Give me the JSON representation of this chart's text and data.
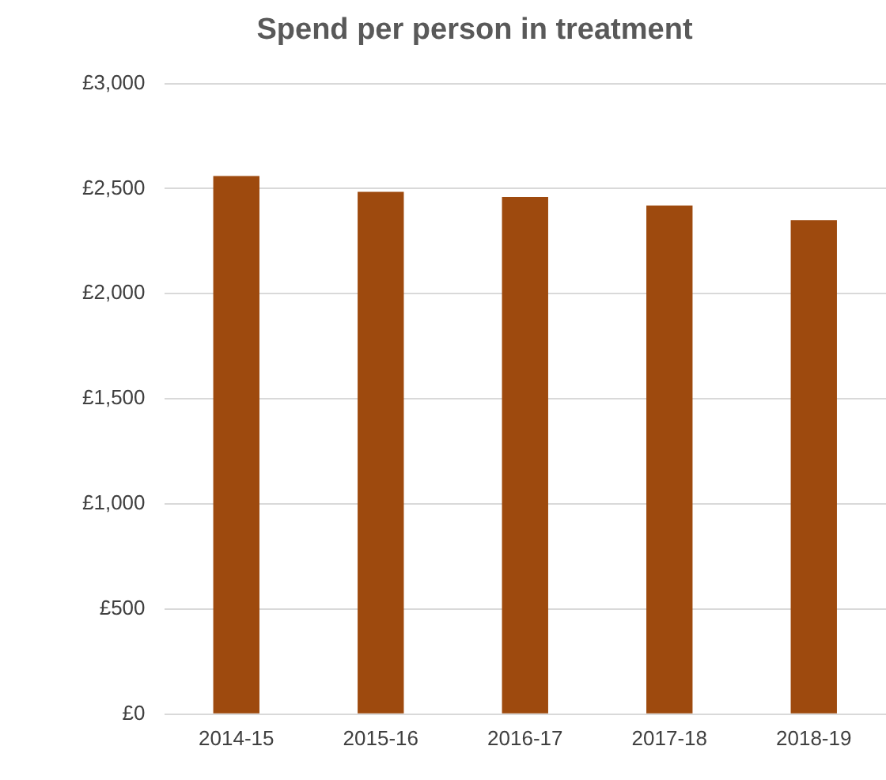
{
  "chart_data": {
    "type": "bar",
    "title": "Spend per person in treatment",
    "categories": [
      "2014-15",
      "2015-16",
      "2016-17",
      "2017-18",
      "2018-19"
    ],
    "values": [
      2560,
      2485,
      2460,
      2420,
      2350
    ],
    "color": "#9e4a0e",
    "ylim": [
      0,
      3000
    ],
    "yticks": [
      {
        "value": 0,
        "label": "£0"
      },
      {
        "value": 500,
        "label": "£500"
      },
      {
        "value": 1000,
        "label": "£1,000"
      },
      {
        "value": 1500,
        "label": "£1,500"
      },
      {
        "value": 2000,
        "label": "£2,000"
      },
      {
        "value": 2500,
        "label": "£2,500"
      },
      {
        "value": 3000,
        "label": "£3,000"
      }
    ],
    "grid": "y",
    "legend": false
  }
}
